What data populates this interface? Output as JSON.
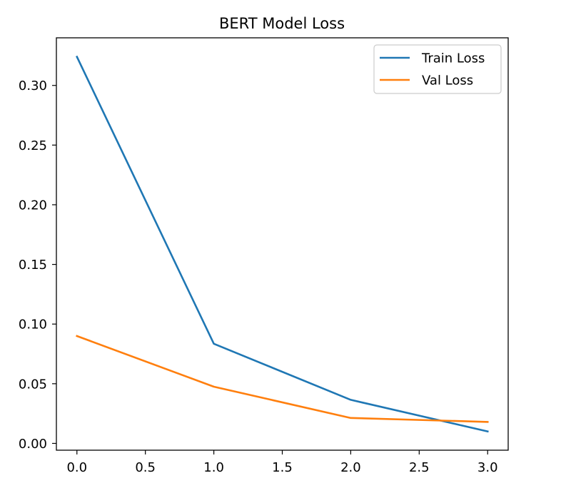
{
  "chart_data": {
    "type": "line",
    "title": "BERT Model Loss",
    "xlabel": "",
    "ylabel": "",
    "x": [
      0,
      1,
      2,
      3
    ],
    "series": [
      {
        "name": "Train Loss",
        "color": "#1f77b4",
        "values": [
          0.324,
          0.0835,
          0.0365,
          0.01
        ]
      },
      {
        "name": "Val Loss",
        "color": "#ff7f0e",
        "values": [
          0.09,
          0.0475,
          0.0213,
          0.018
        ]
      }
    ],
    "xlim": [
      -0.15,
      3.15
    ],
    "ylim": [
      -0.0057,
      0.3399
    ],
    "xticks": [
      0.0,
      0.5,
      1.0,
      1.5,
      2.0,
      2.5,
      3.0
    ],
    "xtick_labels": [
      "0.0",
      "0.5",
      "1.0",
      "1.5",
      "2.0",
      "2.5",
      "3.0"
    ],
    "yticks": [
      0.0,
      0.05,
      0.1,
      0.15,
      0.2,
      0.25,
      0.3
    ],
    "ytick_labels": [
      "0.00",
      "0.05",
      "0.10",
      "0.15",
      "0.20",
      "0.25",
      "0.30"
    ],
    "grid": false,
    "legend_position": "top-right"
  }
}
